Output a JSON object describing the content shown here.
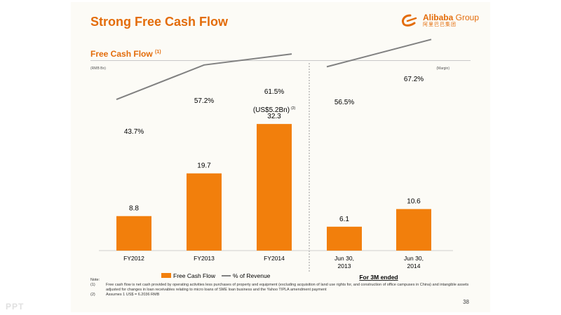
{
  "slide": {
    "title": "Strong Free Cash Flow",
    "logo_name": "Alibaba",
    "logo_group": "Group",
    "logo_cn": "阿里巴巴集团",
    "subtitle": "Free Cash Flow",
    "subtitle_sup": "(1)",
    "page_number": "38",
    "watermark": "PPT"
  },
  "notes": {
    "heading": "Note:",
    "items": [
      {
        "num": "(1)",
        "text": "Free cash flow is net cash provided by operating activities less purchases of property and equipment (excluding acquisition of land use rights for, and construction of office campuses in China) and intangible assets adjusted for changes in loan receivables relating to micro loans of SME loan business and the Yahoo TIPLA amendment payment"
      },
      {
        "num": "(2)",
        "text": "Assumes 1 US$ = 6.2036 RMB"
      }
    ]
  },
  "colors": {
    "accent": "#e36c0a",
    "bar": "#f27f0c",
    "line": "#808080"
  },
  "chart_data": {
    "type": "bar",
    "left_unit": "(RMB Bn)",
    "right_unit": "(Margin)",
    "categories": [
      "FY2012",
      "FY2013",
      "FY2014",
      "Jun 30,\n2013",
      "Jun 30,\n2014"
    ],
    "groups": [
      {
        "label": "",
        "categories": [
          "FY2012",
          "FY2013",
          "FY2014"
        ]
      },
      {
        "label": "For 3M ended",
        "categories": [
          "Jun 30,\n2013",
          "Jun 30,\n2014"
        ]
      }
    ],
    "series": [
      {
        "name": "Free Cash Flow",
        "type": "bar",
        "values": [
          8.8,
          19.7,
          32.3,
          6.1,
          10.6
        ],
        "labels": [
          "8.8",
          "19.7",
          "32.3",
          "6.1",
          "10.6"
        ]
      },
      {
        "name": "% of Revenue",
        "type": "line",
        "values": [
          43.7,
          57.2,
          61.5,
          56.5,
          67.2
        ],
        "labels": [
          "43.7%",
          "57.2%",
          "61.5%",
          "56.5%",
          "67.2%"
        ],
        "line_segments": [
          [
            0,
            1,
            2
          ],
          [
            3,
            4
          ]
        ]
      }
    ],
    "annotations": [
      {
        "category": "FY2014",
        "text": "(US$5.2Bn)",
        "sup": "(2)"
      }
    ],
    "grid": false,
    "legend": "bottom"
  }
}
